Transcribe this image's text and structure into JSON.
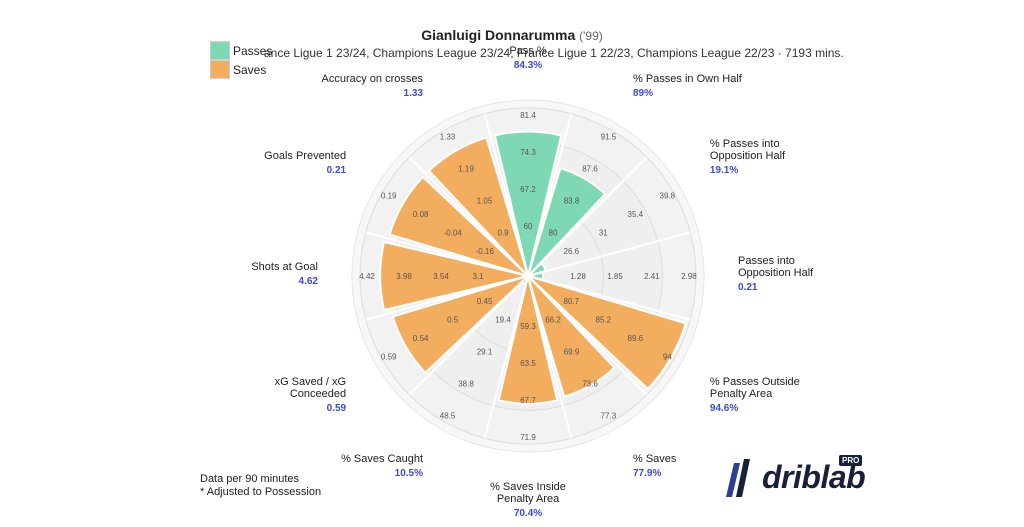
{
  "header": {
    "player_name": "Gianluigi Donnarumma",
    "birth_year": "('99)",
    "competitions": "ance Ligue 1 23/24, Champions League 23/24, France Ligue 1 22/23, Champions League 22/23 · 7193 mins."
  },
  "legend": {
    "items": [
      {
        "label": "Passes",
        "color": "#7fd8b4"
      },
      {
        "label": "Saves",
        "color": "#f2ad5e"
      }
    ]
  },
  "colors": {
    "passes": "#7fd8b4",
    "saves": "#f2ad5e",
    "value_text": "#3b49d4",
    "ring_fill": "#f2f2f2",
    "ring_stroke": "#dcdcdc"
  },
  "chart_data": {
    "type": "polar-bar",
    "title": "Gianluigi Donnarumma",
    "rings": 5,
    "series": [
      {
        "name": "Passes",
        "color_key": "passes"
      },
      {
        "name": "Saves",
        "color_key": "saves"
      }
    ],
    "categories": [
      {
        "label": "Pass %",
        "value": "84.3%",
        "group": "Passes",
        "percentile": 0.86,
        "ticks": [
          "60",
          "67.2",
          "74.3",
          "81.4"
        ]
      },
      {
        "label": "% Passes in Own Half",
        "value": "89%",
        "group": "Passes",
        "percentile": 0.67,
        "ticks": [
          "80",
          "83.8",
          "87.6",
          "91.5"
        ]
      },
      {
        "label": "% Passes into Opposition Half",
        "value": "19.1%",
        "group": "Passes",
        "percentile": 0.11,
        "ticks": [
          "26.6",
          "31",
          "35.4",
          "39.8"
        ]
      },
      {
        "label": "Passes into Opposition Half",
        "value": "0.21",
        "group": "Passes",
        "percentile": 0.09,
        "ticks": [
          "1.28",
          "1.85",
          "2.41",
          "2.98"
        ]
      },
      {
        "label": "% Passes Outside Penalty Area",
        "value": "94.6%",
        "group": "Saves",
        "percentile": 0.98,
        "ticks": [
          "80.7",
          "85.2",
          "89.6",
          "94"
        ]
      },
      {
        "label": "% Saves",
        "value": "77.9%",
        "group": "Saves",
        "percentile": 0.75,
        "ticks": [
          "66.2",
          "69.9",
          "73.6",
          "77.3"
        ]
      },
      {
        "label": "% Saves Inside Penalty Area",
        "value": "70.4%",
        "group": "Saves",
        "percentile": 0.76,
        "ticks": [
          "59.3",
          "63.5",
          "67.7",
          "71.9"
        ]
      },
      {
        "label": "% Saves Caught",
        "value": "10.5%",
        "group": "Saves",
        "percentile": 0.05,
        "ticks": [
          "19.4",
          "29.1",
          "38.8",
          "48.5"
        ]
      },
      {
        "label": "xG Saved / xG Conceeded",
        "value": "0.59",
        "group": "Saves",
        "percentile": 0.84,
        "ticks": [
          "0.45",
          "0.5",
          "0.54",
          "0.59"
        ]
      },
      {
        "label": "Shots at Goal",
        "value": "4.62",
        "group": "Saves",
        "percentile": 0.88,
        "ticks": [
          "3.1",
          "3.54",
          "3.98",
          "4.42"
        ]
      },
      {
        "label": "Goals Prevented",
        "value": "0.21",
        "group": "Saves",
        "percentile": 0.86,
        "ticks": [
          "-0.16",
          "-0.04",
          "0.08",
          "0.19"
        ]
      },
      {
        "label": "Accuracy on crosses",
        "value": "1.33",
        "group": "Saves",
        "percentile": 0.86,
        "ticks": [
          "0.9",
          "1.05",
          "1.19",
          "1.33"
        ]
      }
    ]
  },
  "footnote": {
    "line1": "Data per 90 minutes",
    "line2": "* Adjusted to Possession"
  },
  "brand": {
    "name": "driblab",
    "badge": "PRO"
  }
}
